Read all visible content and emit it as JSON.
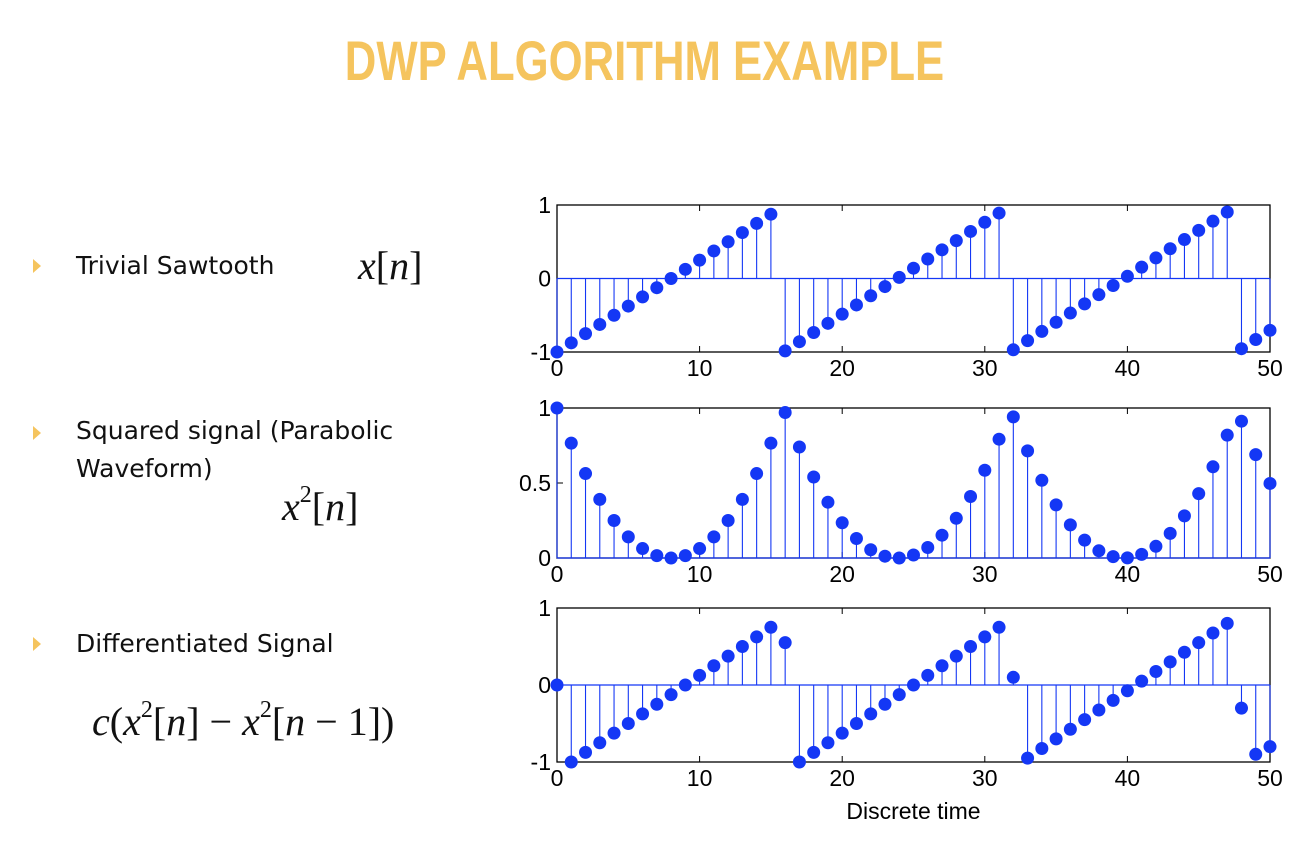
{
  "slide": {
    "title": "DWP ALGORITHM EXAMPLE",
    "accent_color": "#f5c45e",
    "marker_color": "#1437f5",
    "bullets": [
      {
        "label": "Trivial Sawtooth"
      },
      {
        "label": "Squared signal (Parabolic Waveform)"
      },
      {
        "label": "Differentiated Signal"
      }
    ]
  },
  "chart_data": [
    {
      "type": "stem",
      "series": [
        {
          "x": [
            0,
            1,
            2,
            3,
            4,
            5,
            6,
            7,
            8,
            9,
            10,
            11,
            12,
            13,
            14,
            15,
            16,
            17,
            18,
            19,
            20,
            21,
            22,
            23,
            24,
            25,
            26,
            27,
            28,
            29,
            30,
            31,
            32,
            33,
            34,
            35,
            36,
            37,
            38,
            39,
            40,
            41,
            42,
            43,
            44,
            45,
            46,
            47,
            48,
            49,
            50
          ],
          "values": [
            -1,
            -0.875,
            -0.75,
            -0.625,
            -0.5,
            -0.375,
            -0.25,
            -0.125,
            0,
            0.125,
            0.25,
            0.375,
            0.5,
            0.625,
            0.75,
            0.875,
            -0.985,
            -0.86,
            -0.735,
            -0.61,
            -0.485,
            -0.36,
            -0.235,
            -0.11,
            0.015,
            0.14,
            0.265,
            0.39,
            0.515,
            0.64,
            0.765,
            0.89,
            -0.97,
            -0.845,
            -0.72,
            -0.595,
            -0.47,
            -0.345,
            -0.22,
            -0.095,
            0.03,
            0.155,
            0.28,
            0.405,
            0.53,
            0.655,
            0.78,
            0.905,
            -0.955,
            -0.83,
            -0.705
          ]
        }
      ],
      "xlim": [
        0,
        50
      ],
      "ylim": [
        -1,
        1
      ],
      "xticks": [
        0,
        10,
        20,
        30,
        40,
        50
      ],
      "yticks": [
        -1,
        0,
        1
      ],
      "xlabel": ""
    },
    {
      "type": "stem",
      "series": [
        {
          "x": [
            0,
            1,
            2,
            3,
            4,
            5,
            6,
            7,
            8,
            9,
            10,
            11,
            12,
            13,
            14,
            15,
            16,
            17,
            18,
            19,
            20,
            21,
            22,
            23,
            24,
            25,
            26,
            27,
            28,
            29,
            30,
            31,
            32,
            33,
            34,
            35,
            36,
            37,
            38,
            39,
            40,
            41,
            42,
            43,
            44,
            45,
            46,
            47,
            48,
            49,
            50
          ],
          "values": [
            1,
            0.766,
            0.563,
            0.391,
            0.25,
            0.141,
            0.063,
            0.016,
            0,
            0.016,
            0.063,
            0.141,
            0.25,
            0.391,
            0.563,
            0.766,
            0.97,
            0.74,
            0.54,
            0.372,
            0.235,
            0.13,
            0.055,
            0.012,
            0,
            0.02,
            0.07,
            0.152,
            0.265,
            0.41,
            0.585,
            0.792,
            0.941,
            0.714,
            0.518,
            0.354,
            0.221,
            0.119,
            0.048,
            0.009,
            0.001,
            0.024,
            0.078,
            0.164,
            0.281,
            0.429,
            0.608,
            0.819,
            0.912,
            0.689,
            0.497
          ]
        }
      ],
      "xlim": [
        0,
        50
      ],
      "ylim": [
        0,
        1
      ],
      "xticks": [
        0,
        10,
        20,
        30,
        40,
        50
      ],
      "yticks": [
        0,
        0.5,
        1
      ],
      "xlabel": ""
    },
    {
      "type": "stem",
      "series": [
        {
          "x": [
            0,
            1,
            2,
            3,
            4,
            5,
            6,
            7,
            8,
            9,
            10,
            11,
            12,
            13,
            14,
            15,
            16,
            17,
            18,
            19,
            20,
            21,
            22,
            23,
            24,
            25,
            26,
            27,
            28,
            29,
            30,
            31,
            32,
            33,
            34,
            35,
            36,
            37,
            38,
            39,
            40,
            41,
            42,
            43,
            44,
            45,
            46,
            47,
            48,
            49,
            50
          ],
          "values": [
            0,
            -1,
            -0.875,
            -0.75,
            -0.625,
            -0.5,
            -0.375,
            -0.25,
            -0.125,
            0,
            0.125,
            0.25,
            0.375,
            0.5,
            0.625,
            0.75,
            0.55,
            -1,
            -0.875,
            -0.75,
            -0.625,
            -0.5,
            -0.375,
            -0.25,
            -0.125,
            0,
            0.125,
            0.25,
            0.375,
            0.5,
            0.625,
            0.75,
            0.1,
            -0.95,
            -0.825,
            -0.7,
            -0.575,
            -0.45,
            -0.325,
            -0.2,
            -0.075,
            0.05,
            0.175,
            0.3,
            0.425,
            0.55,
            0.675,
            0.8,
            -0.3,
            -0.9,
            -0.8
          ]
        }
      ],
      "xlim": [
        0,
        50
      ],
      "ylim": [
        -1,
        1
      ],
      "xticks": [
        0,
        10,
        20,
        30,
        40,
        50
      ],
      "yticks": [
        -1,
        0,
        1
      ],
      "xlabel": "Discrete time"
    }
  ]
}
